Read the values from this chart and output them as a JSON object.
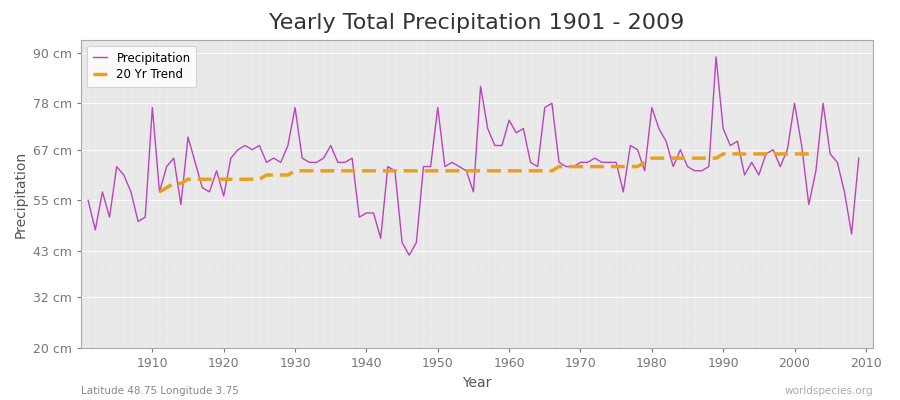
{
  "title": "Yearly Total Precipitation 1901 - 2009",
  "xlabel": "Year",
  "ylabel": "Precipitation",
  "subtitle": "Latitude 48.75 Longitude 3.75",
  "watermark": "worldspecies.org",
  "years": [
    1901,
    1902,
    1903,
    1904,
    1905,
    1906,
    1907,
    1908,
    1909,
    1910,
    1911,
    1912,
    1913,
    1914,
    1915,
    1916,
    1917,
    1918,
    1919,
    1920,
    1921,
    1922,
    1923,
    1924,
    1925,
    1926,
    1927,
    1928,
    1929,
    1930,
    1931,
    1932,
    1933,
    1934,
    1935,
    1936,
    1937,
    1938,
    1939,
    1940,
    1941,
    1942,
    1943,
    1944,
    1945,
    1946,
    1947,
    1948,
    1949,
    1950,
    1951,
    1952,
    1953,
    1954,
    1955,
    1956,
    1957,
    1958,
    1959,
    1960,
    1961,
    1962,
    1963,
    1964,
    1965,
    1966,
    1967,
    1968,
    1969,
    1970,
    1971,
    1972,
    1973,
    1974,
    1975,
    1976,
    1977,
    1978,
    1979,
    1980,
    1981,
    1982,
    1983,
    1984,
    1985,
    1986,
    1987,
    1988,
    1989,
    1990,
    1991,
    1992,
    1993,
    1994,
    1995,
    1996,
    1997,
    1998,
    1999,
    2000,
    2001,
    2002,
    2003,
    2004,
    2005,
    2006,
    2007,
    2008,
    2009
  ],
  "precip": [
    55,
    48,
    57,
    51,
    63,
    61,
    57,
    50,
    51,
    77,
    57,
    63,
    65,
    54,
    70,
    64,
    58,
    57,
    62,
    56,
    65,
    67,
    68,
    67,
    68,
    64,
    65,
    64,
    68,
    77,
    65,
    64,
    64,
    65,
    68,
    64,
    64,
    65,
    51,
    52,
    52,
    46,
    63,
    62,
    45,
    42,
    45,
    63,
    63,
    77,
    63,
    64,
    63,
    62,
    57,
    82,
    72,
    68,
    68,
    74,
    71,
    72,
    64,
    63,
    77,
    78,
    64,
    63,
    63,
    64,
    64,
    65,
    64,
    64,
    64,
    57,
    68,
    67,
    62,
    77,
    72,
    69,
    63,
    67,
    63,
    62,
    62,
    63,
    89,
    72,
    68,
    69,
    61,
    64,
    61,
    66,
    67,
    63,
    67,
    78,
    68,
    54,
    62,
    78,
    66,
    64,
    57,
    47,
    65
  ],
  "trend": [
    null,
    null,
    null,
    null,
    null,
    null,
    null,
    null,
    null,
    null,
    57,
    58,
    59,
    59,
    60,
    60,
    60,
    60,
    60,
    60,
    60,
    60,
    60,
    60,
    60,
    61,
    61,
    61,
    61,
    62,
    62,
    62,
    62,
    62,
    62,
    62,
    62,
    62,
    62,
    62,
    62,
    62,
    62,
    62,
    62,
    62,
    62,
    62,
    62,
    62,
    62,
    62,
    62,
    62,
    62,
    62,
    62,
    62,
    62,
    62,
    62,
    62,
    62,
    62,
    62,
    62,
    63,
    63,
    63,
    63,
    63,
    63,
    63,
    63,
    63,
    63,
    63,
    63,
    64,
    65,
    65,
    65,
    65,
    65,
    65,
    65,
    65,
    65,
    65,
    66,
    66,
    66,
    66,
    66,
    66,
    66,
    66,
    66,
    66,
    66,
    66,
    66,
    66,
    null,
    null,
    null,
    null,
    null,
    null
  ],
  "precip_color": "#BB44BB",
  "trend_color": "#E8A020",
  "bg_color": "#FFFFFF",
  "plot_bg_color": "#E8E8E8",
  "grid_color": "#FFFFFF",
  "ylim": [
    20,
    93
  ],
  "yticks": [
    20,
    32,
    43,
    55,
    67,
    78,
    90
  ],
  "ytick_labels": [
    "20 cm",
    "32 cm",
    "43 cm",
    "55 cm",
    "67 cm",
    "78 cm",
    "90 cm"
  ],
  "title_fontsize": 16,
  "label_fontsize": 10,
  "tick_fontsize": 9,
  "legend_labels": [
    "Precipitation",
    "20 Yr Trend"
  ],
  "xlim_left": 1900,
  "xlim_right": 2011
}
